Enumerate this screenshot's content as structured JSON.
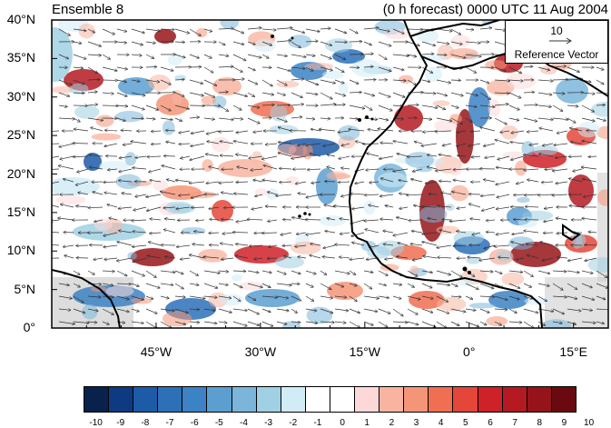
{
  "header": {
    "left_title": "Ensemble 8",
    "right_title": "(0 h forecast) 0000 UTC 11 Aug 2004"
  },
  "map": {
    "lon_range": [
      -60,
      20
    ],
    "lat_range": [
      0,
      40
    ],
    "y_ticks": [
      {
        "value": 40,
        "label": "40°N"
      },
      {
        "value": 35,
        "label": "35°N"
      },
      {
        "value": 30,
        "label": "30°N"
      },
      {
        "value": 25,
        "label": "25°N"
      },
      {
        "value": 20,
        "label": "20°N"
      },
      {
        "value": 15,
        "label": "15°N"
      },
      {
        "value": 10,
        "label": "10°N"
      },
      {
        "value": 5,
        "label": "5°N"
      },
      {
        "value": 0,
        "label": "0°"
      }
    ],
    "x_ticks": [
      {
        "value": -45,
        "label": "45°W"
      },
      {
        "value": -30,
        "label": "30°W"
      },
      {
        "value": -15,
        "label": "15°W"
      },
      {
        "value": 0,
        "label": "0°"
      },
      {
        "value": 15,
        "label": "15°E"
      }
    ],
    "reference_vector": {
      "magnitude": "10",
      "label": "Reference Vector"
    },
    "coastline_color": "#000000",
    "vector_color": "#333333"
  },
  "colorbar": {
    "colors": [
      "#08214d",
      "#0d3a80",
      "#1c5ba8",
      "#2d70b8",
      "#3c82c4",
      "#5b9fd1",
      "#7bb6da",
      "#a0d0e3",
      "#d2ecf7",
      "#ffffff",
      "#ffffff",
      "#fdd8d8",
      "#f8b4a0",
      "#f59578",
      "#f06f52",
      "#e4463a",
      "#cf2128",
      "#b51a22",
      "#961419",
      "#6a0a10"
    ],
    "labels": [
      "-10",
      "-9",
      "-8",
      "-7",
      "-6",
      "-5",
      "-4",
      "-3",
      "-2",
      "-1",
      "0",
      "1",
      "2",
      "3",
      "4",
      "5",
      "6",
      "7",
      "8",
      "9",
      "10"
    ]
  }
}
